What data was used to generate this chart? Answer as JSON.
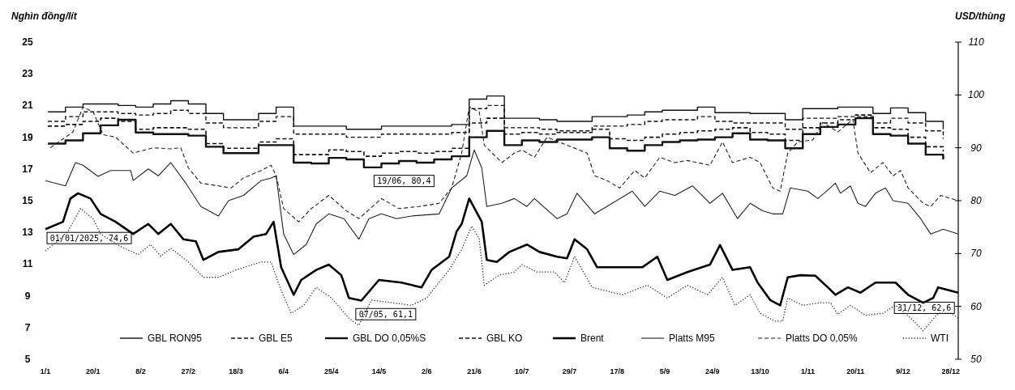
{
  "chart_data": {
    "type": "line",
    "ylabel": "Nghìn đồng/lít",
    "y2label": "USD/thùng",
    "xlim": [
      "2025-01-01",
      "2025-12-31"
    ],
    "xticks": [
      {
        "value": "2025-01-01",
        "label": "1/1"
      },
      {
        "value": "2025-01-20",
        "label": "20/1"
      },
      {
        "value": "2025-02-08",
        "label": "8/2"
      },
      {
        "value": "2025-02-27",
        "label": "27/2"
      },
      {
        "value": "2025-03-18",
        "label": "18/3"
      },
      {
        "value": "2025-04-06",
        "label": "6/4"
      },
      {
        "value": "2025-04-25",
        "label": "25/4"
      },
      {
        "value": "2025-05-14",
        "label": "14/5"
      },
      {
        "value": "2025-06-02",
        "label": "2/6"
      },
      {
        "value": "2025-06-21",
        "label": "21/6"
      },
      {
        "value": "2025-07-10",
        "label": "10/7"
      },
      {
        "value": "2025-07-29",
        "label": "29/7"
      },
      {
        "value": "2025-08-17",
        "label": "17/8"
      },
      {
        "value": "2025-09-05",
        "label": "5/9"
      },
      {
        "value": "2025-09-24",
        "label": "24/9"
      },
      {
        "value": "2025-10-13",
        "label": "13/10"
      },
      {
        "value": "2025-11-01",
        "label": "1/11"
      },
      {
        "value": "2025-11-20",
        "label": "20/11"
      },
      {
        "value": "2025-12-09",
        "label": "9/12"
      },
      {
        "value": "2025-12-28",
        "label": "28/12"
      }
    ],
    "ylim": [
      5,
      25
    ],
    "yticks": [
      5,
      7,
      9,
      11,
      13,
      15,
      17,
      19,
      21,
      23,
      25
    ],
    "y2lim": [
      50,
      110
    ],
    "y2ticks": [
      50,
      60,
      70,
      80,
      90,
      100,
      110
    ],
    "legend": "bottom",
    "grid": false,
    "x": [
      "2025-01-02",
      "2025-01-09",
      "2025-01-16",
      "2025-01-23",
      "2025-01-30",
      "2025-02-06",
      "2025-02-13",
      "2025-02-20",
      "2025-02-27",
      "2025-03-06",
      "2025-03-13",
      "2025-03-20",
      "2025-03-27",
      "2025-04-03",
      "2025-04-10",
      "2025-04-17",
      "2025-04-24",
      "2025-05-01",
      "2025-05-08",
      "2025-05-15",
      "2025-05-22",
      "2025-05-29",
      "2025-06-05",
      "2025-06-12",
      "2025-06-19",
      "2025-06-26",
      "2025-07-03",
      "2025-07-10",
      "2025-07-17",
      "2025-07-24",
      "2025-07-31",
      "2025-08-07",
      "2025-08-14",
      "2025-08-21",
      "2025-08-28",
      "2025-09-04",
      "2025-09-11",
      "2025-09-18",
      "2025-09-25",
      "2025-10-02",
      "2025-10-09",
      "2025-10-16",
      "2025-10-23",
      "2025-10-30",
      "2025-11-06",
      "2025-11-13",
      "2025-11-20",
      "2025-11-27",
      "2025-12-04",
      "2025-12-11",
      "2025-12-18",
      "2025-12-25"
    ],
    "series": [
      {
        "name": "GBL RON95",
        "type": "step",
        "color": "#111111",
        "line_style": "solid",
        "values": [
          20.6,
          20.9,
          21.1,
          21.1,
          21.0,
          20.9,
          21.1,
          21.3,
          21.1,
          20.5,
          20.1,
          20.1,
          20.5,
          20.9,
          19.7,
          19.7,
          19.7,
          19.5,
          19.5,
          19.7,
          19.7,
          19.7,
          19.7,
          19.8,
          21.4,
          21.6,
          20.2,
          20.2,
          20.1,
          20.0,
          20.0,
          20.3,
          20.3,
          20.4,
          20.6,
          20.7,
          20.7,
          20.9,
          20.55,
          20.55,
          20.5,
          20.5,
          20.1,
          20.8,
          20.8,
          20.9,
          20.9,
          20.5,
          20.85,
          20.55,
          20.0,
          19.5
        ]
      },
      {
        "name": "GBL E5",
        "type": "step",
        "color": "#111111",
        "line_style": "dashed",
        "values": [
          20.0,
          20.3,
          20.6,
          20.6,
          20.5,
          20.4,
          20.5,
          20.7,
          20.5,
          19.9,
          19.6,
          19.6,
          20.0,
          20.3,
          19.2,
          19.2,
          19.2,
          19.0,
          19.0,
          19.2,
          19.2,
          19.2,
          19.2,
          19.3,
          20.8,
          21.0,
          19.6,
          19.6,
          19.5,
          19.4,
          19.4,
          19.7,
          19.7,
          19.8,
          20.0,
          20.1,
          20.1,
          20.3,
          20.0,
          19.9,
          19.9,
          19.9,
          19.5,
          20.2,
          20.2,
          20.3,
          20.3,
          19.9,
          20.2,
          19.9,
          19.4,
          18.9
        ]
      },
      {
        "name": "GBL DO 0,05%S",
        "type": "step",
        "color": "#111111",
        "line_style": "solid",
        "values": [
          18.6,
          18.8,
          19.25,
          19.75,
          20.1,
          19.3,
          19.2,
          19.2,
          19.1,
          18.4,
          18.0,
          18.0,
          18.5,
          18.5,
          17.4,
          17.35,
          17.7,
          17.6,
          17.1,
          17.35,
          17.5,
          17.4,
          17.6,
          17.8,
          19.0,
          19.4,
          18.5,
          18.8,
          18.7,
          18.85,
          18.85,
          19.0,
          18.3,
          18.15,
          18.5,
          18.7,
          18.8,
          18.85,
          19.0,
          19.25,
          18.85,
          18.8,
          18.3,
          19.2,
          19.65,
          19.8,
          20.2,
          19.2,
          19.1,
          18.6,
          17.9,
          17.6
        ]
      },
      {
        "name": "GBL KO",
        "type": "step",
        "color": "#111111",
        "line_style": "dashed",
        "values": [
          19.7,
          19.8,
          20.0,
          20.2,
          20.0,
          19.5,
          19.6,
          19.6,
          19.5,
          18.6,
          18.3,
          18.3,
          18.7,
          18.9,
          17.9,
          17.9,
          18.2,
          18.1,
          17.8,
          18.0,
          18.1,
          18.0,
          18.1,
          18.3,
          19.9,
          20.2,
          19.2,
          19.3,
          19.2,
          19.3,
          19.3,
          19.5,
          18.9,
          18.8,
          19.0,
          19.2,
          19.3,
          19.4,
          19.5,
          19.6,
          19.3,
          19.2,
          18.8,
          19.6,
          19.9,
          20.1,
          20.4,
          19.6,
          19.5,
          19.0,
          18.4,
          18.1
        ]
      },
      {
        "name": "Brent",
        "axis": "y2",
        "color": "#000000",
        "line_style": "solid",
        "x": [
          "2025-01-01",
          "2025-01-08",
          "2025-01-11",
          "2025-01-14",
          "2025-01-19",
          "2025-01-23",
          "2025-01-29",
          "2025-02-05",
          "2025-02-11",
          "2025-02-15",
          "2025-02-20",
          "2025-02-25",
          "2025-03-02",
          "2025-03-05",
          "2025-03-11",
          "2025-03-19",
          "2025-03-25",
          "2025-03-30",
          "2025-04-02",
          "2025-04-05",
          "2025-04-10",
          "2025-04-13",
          "2025-04-19",
          "2025-04-24",
          "2025-04-29",
          "2025-05-02",
          "2025-05-07",
          "2025-05-14",
          "2025-05-23",
          "2025-05-31",
          "2025-06-04",
          "2025-06-11",
          "2025-06-14",
          "2025-06-16",
          "2025-06-19",
          "2025-06-24",
          "2025-06-26",
          "2025-06-30",
          "2025-07-05",
          "2025-07-12",
          "2025-07-17",
          "2025-07-24",
          "2025-07-28",
          "2025-07-31",
          "2025-08-05",
          "2025-08-09",
          "2025-08-18",
          "2025-08-27",
          "2025-09-02",
          "2025-09-06",
          "2025-09-14",
          "2025-09-23",
          "2025-09-27",
          "2025-10-02",
          "2025-10-09",
          "2025-10-12",
          "2025-10-17",
          "2025-10-21",
          "2025-10-24",
          "2025-10-29",
          "2025-11-04",
          "2025-11-09",
          "2025-11-12",
          "2025-11-17",
          "2025-11-22",
          "2025-11-28",
          "2025-12-06",
          "2025-12-11",
          "2025-12-17",
          "2025-12-21",
          "2025-12-23",
          "2025-12-31"
        ],
        "values": [
          74.6,
          76,
          80.4,
          81.4,
          80.4,
          77.5,
          76,
          73.7,
          75.6,
          73.7,
          75.6,
          72.7,
          72.3,
          68.8,
          70.3,
          70.8,
          73.2,
          73.7,
          76,
          67.4,
          62.2,
          65,
          66.9,
          67.9,
          65.9,
          61.6,
          61.1,
          65,
          64.5,
          63.6,
          66.9,
          69.4,
          74.2,
          75.6,
          80.4,
          76,
          68.8,
          68.4,
          70.3,
          71.7,
          70.3,
          69.4,
          69.1,
          72.7,
          70.8,
          67.4,
          67.4,
          67.4,
          69.4,
          65,
          66.5,
          67.9,
          71.6,
          66.9,
          67.4,
          64.5,
          61.2,
          60.2,
          65.5,
          65.9,
          65.8,
          63.6,
          62.2,
          63.6,
          62.6,
          64.5,
          64.5,
          62.2,
          60.7,
          61.6,
          63.6,
          62.6
        ]
      },
      {
        "name": "Platts M95",
        "axis": "y2",
        "color": "#222222",
        "line_style": "solid",
        "x": [
          "2025-01-01",
          "2025-01-09",
          "2025-01-13",
          "2025-01-16",
          "2025-01-22",
          "2025-01-27",
          "2025-02-04",
          "2025-02-05",
          "2025-02-11",
          "2025-02-15",
          "2025-02-20",
          "2025-02-26",
          "2025-03-04",
          "2025-03-11",
          "2025-03-15",
          "2025-03-21",
          "2025-03-28",
          "2025-04-01",
          "2025-04-03",
          "2025-04-06",
          "2025-04-10",
          "2025-04-15",
          "2025-04-19",
          "2025-04-24",
          "2025-04-30",
          "2025-05-06",
          "2025-05-10",
          "2025-05-15",
          "2025-05-21",
          "2025-05-27",
          "2025-06-07",
          "2025-06-12",
          "2025-06-18",
          "2025-06-21",
          "2025-06-24",
          "2025-06-26",
          "2025-07-02",
          "2025-07-07",
          "2025-07-12",
          "2025-07-15",
          "2025-07-24",
          "2025-07-28",
          "2025-08-01",
          "2025-08-08",
          "2025-08-15",
          "2025-08-23",
          "2025-08-28",
          "2025-09-03",
          "2025-09-09",
          "2025-09-16",
          "2025-09-23",
          "2025-09-28",
          "2025-10-04",
          "2025-10-09",
          "2025-10-14",
          "2025-10-18",
          "2025-10-22",
          "2025-10-25",
          "2025-11-01",
          "2025-11-05",
          "2025-11-08",
          "2025-11-12",
          "2025-11-14",
          "2025-11-18",
          "2025-11-21",
          "2025-11-24",
          "2025-11-28",
          "2025-12-02",
          "2025-12-05",
          "2025-12-11",
          "2025-12-16",
          "2025-12-20",
          "2025-12-25",
          "2025-12-31"
        ],
        "values": [
          83.8,
          82.8,
          87.2,
          86.7,
          84.6,
          85.7,
          85.7,
          83.8,
          86,
          84.7,
          87.2,
          83.3,
          78.9,
          77.1,
          80,
          81,
          83.8,
          84.3,
          84.7,
          73.7,
          69.8,
          71.7,
          75.6,
          77.5,
          76.6,
          72.7,
          76.6,
          77.5,
          76.6,
          77.1,
          77.5,
          82.4,
          84.7,
          89.6,
          86.2,
          78.9,
          79.5,
          80.4,
          78.9,
          80.4,
          76.6,
          77.5,
          81.4,
          77.5,
          79.5,
          81.8,
          78.9,
          81.8,
          81,
          82.8,
          79.5,
          81.4,
          76.6,
          79.5,
          78.1,
          77.5,
          77.5,
          82.4,
          81.8,
          80.4,
          81.6,
          83.3,
          81.4,
          82.8,
          79.5,
          78.9,
          81.4,
          82.4,
          80,
          79.5,
          76.6,
          73.7,
          74.6,
          73.7
        ]
      },
      {
        "name": "Platts DO 0,05%",
        "axis": "y2",
        "color": "#222222",
        "line_style": "dashed",
        "x": [
          "2025-01-03",
          "2025-01-12",
          "2025-01-16",
          "2025-01-20",
          "2025-01-24",
          "2025-01-29",
          "2025-02-05",
          "2025-02-13",
          "2025-02-20",
          "2025-02-24",
          "2025-02-27",
          "2025-03-04",
          "2025-03-11",
          "2025-03-16",
          "2025-03-21",
          "2025-03-28",
          "2025-04-01",
          "2025-04-03",
          "2025-04-06",
          "2025-04-12",
          "2025-04-17",
          "2025-04-24",
          "2025-05-01",
          "2025-05-06",
          "2025-05-15",
          "2025-05-22",
          "2025-05-30",
          "2025-06-07",
          "2025-06-12",
          "2025-06-16",
          "2025-06-19",
          "2025-06-23",
          "2025-06-25",
          "2025-07-02",
          "2025-07-07",
          "2025-07-10",
          "2025-07-15",
          "2025-07-20",
          "2025-07-28",
          "2025-08-05",
          "2025-08-08",
          "2025-08-13",
          "2025-08-18",
          "2025-08-24",
          "2025-08-28",
          "2025-09-03",
          "2025-09-09",
          "2025-09-14",
          "2025-09-23",
          "2025-09-28",
          "2025-10-02",
          "2025-10-09",
          "2025-10-13",
          "2025-10-18",
          "2025-10-21",
          "2025-10-24",
          "2025-10-28",
          "2025-11-03",
          "2025-11-07",
          "2025-11-13",
          "2025-11-19",
          "2025-11-21",
          "2025-11-26",
          "2025-12-01",
          "2025-12-05",
          "2025-12-08",
          "2025-12-11",
          "2025-12-17",
          "2025-12-20",
          "2025-12-24",
          "2025-12-31"
        ],
        "values": [
          90,
          93,
          97.7,
          96.8,
          92.5,
          92,
          89,
          90,
          89.8,
          90,
          86.2,
          83.3,
          82.8,
          82.4,
          84.3,
          85.7,
          86.7,
          84.7,
          78.5,
          76,
          78.5,
          81,
          78.1,
          76.6,
          80.4,
          78.5,
          78.9,
          79.5,
          82.4,
          89,
          97.7,
          96.8,
          90.5,
          87.2,
          89,
          89.6,
          88.2,
          92,
          90.5,
          89,
          84.7,
          83.8,
          82.4,
          85.7,
          84.3,
          88.2,
          87.2,
          87.6,
          86.7,
          91.1,
          87.2,
          88.2,
          87.2,
          82.4,
          81.8,
          89,
          91.1,
          91.5,
          94.8,
          93,
          95.4,
          89,
          85.3,
          87.2,
          84.7,
          85.7,
          82.4,
          79.5,
          78.9,
          81,
          80
        ]
      },
      {
        "name": "WTI",
        "axis": "y2",
        "color": "#222222",
        "line_style": "dotted",
        "x": [
          "2025-01-01",
          "2025-01-06",
          "2025-01-10",
          "2025-01-15",
          "2025-01-20",
          "2025-01-23",
          "2025-01-31",
          "2025-02-07",
          "2025-02-12",
          "2025-02-16",
          "2025-02-20",
          "2025-02-27",
          "2025-03-05",
          "2025-03-11",
          "2025-03-18",
          "2025-03-28",
          "2025-04-01",
          "2025-04-05",
          "2025-04-09",
          "2025-04-14",
          "2025-04-19",
          "2025-04-25",
          "2025-05-02",
          "2025-05-06",
          "2025-05-11",
          "2025-05-19",
          "2025-05-27",
          "2025-06-02",
          "2025-06-11",
          "2025-06-16",
          "2025-06-20",
          "2025-06-23",
          "2025-06-25",
          "2025-07-01",
          "2025-07-07",
          "2025-07-10",
          "2025-07-16",
          "2025-07-23",
          "2025-07-27",
          "2025-07-31",
          "2025-08-07",
          "2025-08-19",
          "2025-08-29",
          "2025-09-06",
          "2025-09-14",
          "2025-09-22",
          "2025-09-28",
          "2025-10-03",
          "2025-10-09",
          "2025-10-13",
          "2025-10-19",
          "2025-10-22",
          "2025-10-24",
          "2025-10-30",
          "2025-11-06",
          "2025-11-10",
          "2025-11-13",
          "2025-11-18",
          "2025-11-24",
          "2025-12-01",
          "2025-12-06",
          "2025-12-12",
          "2025-12-17",
          "2025-12-23",
          "2025-12-28",
          "2025-12-31"
        ],
        "values": [
          70.5,
          72.4,
          74.2,
          78.5,
          76.6,
          73.7,
          71.3,
          69.8,
          71.7,
          69.5,
          71,
          68.4,
          65.5,
          65.5,
          66.9,
          68.4,
          68.4,
          63,
          58.7,
          60.2,
          63.6,
          61.6,
          57.8,
          56.4,
          61.2,
          60.7,
          60.2,
          61.6,
          66.9,
          70.8,
          75.2,
          72.7,
          64,
          65.9,
          66.5,
          67.9,
          66.5,
          66.5,
          64.5,
          69.4,
          63.6,
          62.2,
          64,
          61.6,
          64,
          62.2,
          65.5,
          60.2,
          62.2,
          58.7,
          57.2,
          57.2,
          61.6,
          60.2,
          60.7,
          60.7,
          58.5,
          60.2,
          58.3,
          58.7,
          60.2,
          57.8,
          55.4,
          58.7,
          58.7,
          57.8
        ]
      }
    ],
    "annotations": [
      "01/01/2025, 74,6",
      "07/05, 61,1",
      "19/06, 80,4",
      "31/12, 62,6"
    ]
  }
}
